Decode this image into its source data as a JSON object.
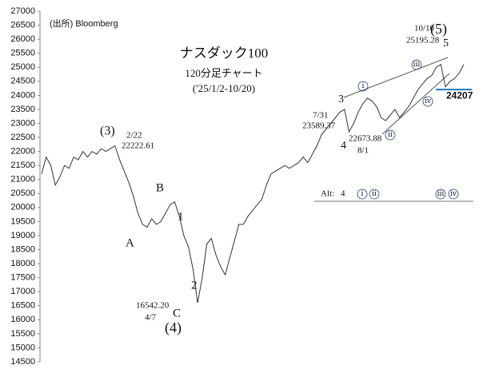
{
  "chart_data": {
    "type": "line",
    "title": "ナスダック100",
    "subtitle": "120分足チャート",
    "period": "('25/1/2-10/20)",
    "source": "(出所) Bloomberg",
    "color": "#333333",
    "values": [
      21200,
      21800,
      21500,
      20800,
      21100,
      21500,
      21400,
      21800,
      21700,
      22000,
      21800,
      22000,
      21900,
      22100,
      22000,
      22100,
      22200,
      21700,
      21300,
      20900,
      20400,
      19800,
      19400,
      19300,
      19600,
      19400,
      19500,
      19800,
      20100,
      20200,
      19700,
      19000,
      18600,
      17800,
      16600,
      17500,
      18700,
      18900,
      18300,
      17900,
      17600,
      18200,
      18800,
      19400,
      19400,
      19700,
      19900,
      20100,
      20300,
      20800,
      21200,
      21300,
      21400,
      21500,
      21400,
      21500,
      21600,
      21800,
      21600,
      21900,
      22200,
      22600,
      22800,
      23000,
      23200,
      23400,
      23500,
      22700,
      23000,
      23400,
      23700,
      23900,
      23800,
      23600,
      23200,
      23100,
      23300,
      23500,
      23200,
      23400,
      23600,
      23900,
      24200,
      24400,
      24600,
      24700,
      25000,
      25100,
      24300,
      24500,
      24600,
      24800,
      25100
    ],
    "ylim": [
      14500,
      27000
    ],
    "yticks": [
      14500,
      15000,
      15500,
      16000,
      16500,
      17000,
      17500,
      18000,
      18500,
      19000,
      19500,
      20000,
      20500,
      21000,
      21500,
      22000,
      22500,
      23000,
      23500,
      24000,
      24500,
      25000,
      25500,
      26000,
      26500,
      27000
    ],
    "hline": {
      "value": 24207,
      "color": "#1f7abf"
    },
    "annotations": [
      "(3)",
      "2/22",
      "22222.61",
      "A",
      "B",
      "1",
      "2",
      "C",
      "(4)",
      "16542.20",
      "4/7",
      "7/31",
      "23589.37",
      "3",
      "4",
      "22673.88",
      "8/1",
      "10/10",
      "25195.28",
      "(5)",
      "5",
      "Alt:",
      "4",
      "ⅰ",
      "ⅱ",
      "ⅲ",
      "ⅳ",
      "ⅰ",
      "ⅱ",
      "ⅲ",
      "ⅳ"
    ]
  }
}
